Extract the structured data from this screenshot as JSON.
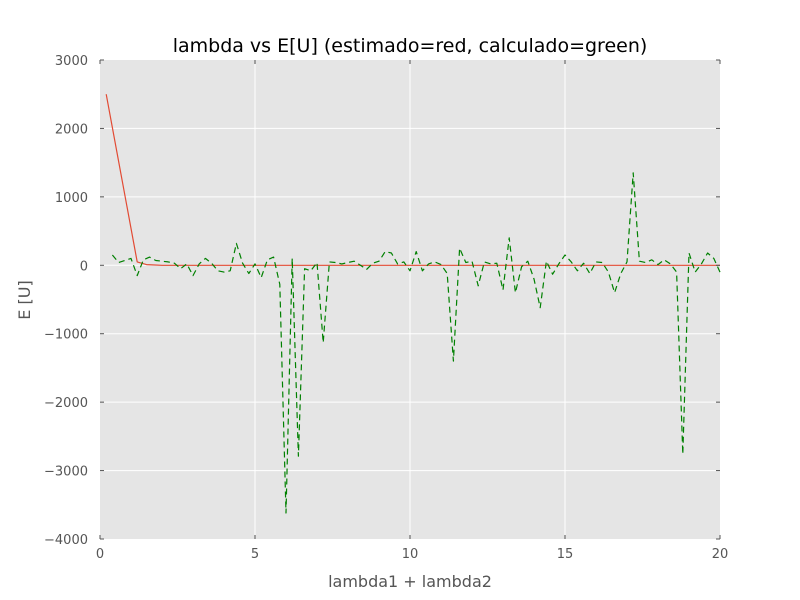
{
  "chart_data": {
    "type": "line",
    "title": "lambda vs E[U] (estimado=red, calculado=green)",
    "xlabel": "lambda1 + lambda2",
    "ylabel": "E [U]",
    "xlim": [
      0,
      20
    ],
    "ylim": [
      -4000,
      3000
    ],
    "x_ticks": [
      0,
      5,
      10,
      15,
      20
    ],
    "y_ticks": [
      3000,
      2000,
      1000,
      0,
      -1000,
      -2000,
      -3000,
      -4000
    ],
    "grid": true,
    "background": "#e5e5e5",
    "series": [
      {
        "color": "#e24a33",
        "line_style": "solid",
        "x": [
          0.2,
          1.2,
          1.5,
          2,
          3,
          4,
          5,
          6,
          7,
          8,
          9,
          10,
          11,
          12,
          13,
          14,
          15,
          16,
          17,
          18,
          19,
          20
        ],
        "y": [
          2500,
          50,
          10,
          0,
          0,
          0,
          0,
          0,
          0,
          0,
          0,
          0,
          0,
          0,
          0,
          0,
          0,
          0,
          0,
          0,
          0,
          0
        ]
      },
      {
        "color": "#008000",
        "line_style": "dashed",
        "x": [
          0.4,
          0.6,
          0.8,
          1.0,
          1.2,
          1.4,
          1.6,
          1.8,
          2.0,
          2.2,
          2.4,
          2.6,
          2.8,
          3.0,
          3.2,
          3.4,
          3.6,
          3.8,
          4.0,
          4.2,
          4.4,
          4.6,
          4.8,
          5.0,
          5.2,
          5.4,
          5.6,
          5.8,
          6.0,
          6.2,
          6.4,
          6.6,
          6.8,
          7.0,
          7.2,
          7.4,
          7.6,
          7.8,
          8.0,
          8.2,
          8.4,
          8.6,
          8.8,
          9.0,
          9.2,
          9.4,
          9.6,
          9.8,
          10.0,
          10.2,
          10.4,
          10.6,
          10.8,
          11.0,
          11.2,
          11.4,
          11.6,
          11.8,
          12.0,
          12.2,
          12.4,
          12.6,
          12.8,
          13.0,
          13.2,
          13.4,
          13.6,
          13.8,
          14.0,
          14.2,
          14.4,
          14.6,
          14.8,
          15.0,
          15.2,
          15.4,
          15.6,
          15.8,
          16.0,
          16.2,
          16.4,
          16.6,
          16.8,
          17.0,
          17.2,
          17.4,
          17.6,
          17.8,
          18.0,
          18.2,
          18.4,
          18.6,
          18.8,
          19.0,
          19.2,
          19.4,
          19.6,
          19.8,
          20.0
        ],
        "y": [
          150,
          40,
          70,
          100,
          -150,
          80,
          120,
          70,
          60,
          50,
          30,
          -50,
          20,
          -150,
          20,
          100,
          30,
          -80,
          -100,
          -80,
          320,
          30,
          -120,
          20,
          -180,
          80,
          120,
          -280,
          -3620,
          100,
          -2790,
          -50,
          -80,
          40,
          -1130,
          50,
          40,
          20,
          40,
          60,
          0,
          -60,
          30,
          60,
          200,
          180,
          20,
          50,
          -80,
          200,
          -80,
          20,
          50,
          10,
          -120,
          -1400,
          250,
          40,
          60,
          -300,
          50,
          20,
          30,
          -360,
          400,
          -400,
          -20,
          60,
          -200,
          -620,
          60,
          -130,
          20,
          150,
          50,
          -80,
          30,
          -120,
          50,
          40,
          -100,
          -400,
          -120,
          50,
          1350,
          60,
          40,
          80,
          10,
          80,
          20,
          -100,
          -2760,
          180,
          -100,
          20,
          180,
          100,
          -100
        ]
      }
    ]
  }
}
